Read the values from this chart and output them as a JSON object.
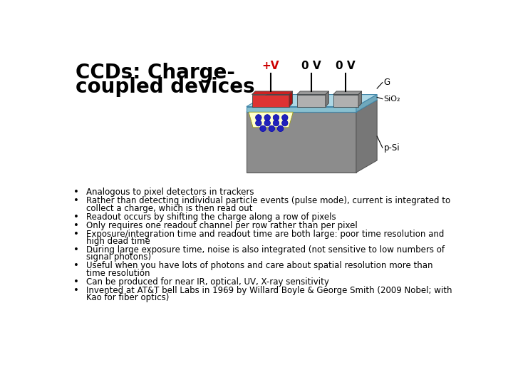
{
  "title_line1": "CCDs: Charge-",
  "title_line2": "coupled devices",
  "title_fontsize": 20,
  "background_color": "#ffffff",
  "text_color": "#000000",
  "bullet_points": [
    [
      "Analogous to pixel detectors in trackers"
    ],
    [
      "Rather than detecting individual particle events (pulse mode), current is integrated to",
      "collect a charge, which is then read out"
    ],
    [
      "Readout occurs by shifting the charge along a row of pixels"
    ],
    [
      "Only requires one readout channel per row rather than per pixel"
    ],
    [
      "Exposure/integration time and readout time are both large: poor time resolution and",
      "high dead time"
    ],
    [
      "During large exposure time, noise is also integrated (not sensitive to low numbers of",
      "signal photons)"
    ],
    [
      "Useful when you have lots of photons and care about spatial resolution more than",
      "time resolution"
    ],
    [
      "Can be produced for near IR, optical, UV, X-ray sensitivity"
    ],
    [
      "Invented at AT&T bell Labs in 1969 by Willard Boyle & George Smith (2009 Nobel; with",
      "Kao for fiber optics)"
    ]
  ],
  "bullet_fontsize": 8.5,
  "diagram": {
    "body_gray_front": "#8c8c8c",
    "body_gray_top": "#aaaaaa",
    "body_gray_right": "#777777",
    "sio2_top": "#add8e6",
    "sio2_front": "#88c0d0",
    "sio2_right": "#70a8bc",
    "charge_fill": "#ffffcc",
    "gate_red_top": "#cc2222",
    "gate_red_front": "#dd3333",
    "gate_red_right": "#aa1111",
    "gate_gray_top": "#999999",
    "gate_gray_front": "#b0b0b0",
    "gate_gray_right": "#787878",
    "wire_color": "#000000",
    "label_plus_v_color": "#cc0000",
    "label_0v_color": "#000000",
    "dot_color": "#2222bb"
  }
}
